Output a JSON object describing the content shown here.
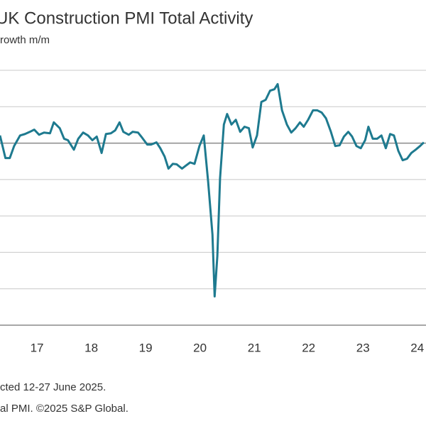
{
  "chart_data": {
    "type": "line",
    "title": "UK Construction PMI Total Activity",
    "subtitle": "rowth m/m",
    "notes": [
      "cted 12-27 June 2025.",
      "al PMI. ©2025 S&P Global."
    ],
    "x": [
      2016.32,
      2016.42,
      2016.5,
      2016.58,
      2016.69,
      2016.78,
      2016.87,
      2016.95,
      2017.04,
      2017.13,
      2017.24,
      2017.31,
      2017.42,
      2017.5,
      2017.57,
      2017.68,
      2017.76,
      2017.85,
      2017.94,
      2018.02,
      2018.1,
      2018.19,
      2018.27,
      2018.36,
      2018.44,
      2018.52,
      2018.59,
      2018.69,
      2018.76,
      2018.86,
      2018.93,
      2019.03,
      2019.1,
      2019.2,
      2019.27,
      2019.35,
      2019.42,
      2019.5,
      2019.57,
      2019.67,
      2019.74,
      2019.82,
      2019.9,
      2019.99,
      2020.07,
      2020.15,
      2020.23,
      2020.27,
      2020.32,
      2020.37,
      2020.44,
      2020.5,
      2020.58,
      2020.66,
      2020.74,
      2020.82,
      2020.9,
      2020.97,
      2021.05,
      2021.13,
      2021.21,
      2021.29,
      2021.37,
      2021.43,
      2021.51,
      2021.6,
      2021.68,
      2021.76,
      2021.84,
      2021.91,
      2021.99,
      2022.08,
      2022.16,
      2022.24,
      2022.32,
      2022.41,
      2022.49,
      2022.57,
      2022.65,
      2022.73,
      2022.8,
      2022.88,
      2022.96,
      2023.04,
      2023.1,
      2023.18,
      2023.26,
      2023.34,
      2023.42,
      2023.5,
      2023.57,
      2023.65,
      2023.73,
      2023.81,
      2023.89,
      2023.97,
      2024.05,
      2024.12
    ],
    "series": [
      {
        "name": "Total Activity",
        "color": "#1e7a8f",
        "values": [
          52.1,
          45.9,
          45.9,
          49.2,
          52.1,
          52.5,
          53.1,
          53.7,
          52.3,
          52.9,
          52.7,
          55.7,
          54.1,
          51.2,
          50.8,
          48.2,
          51.2,
          52.9,
          52.1,
          50.8,
          51.8,
          47.3,
          52.5,
          52.7,
          53.5,
          55.7,
          53.1,
          52.3,
          53.1,
          52.9,
          51.6,
          49.6,
          49.6,
          50.2,
          48.6,
          46.3,
          43.0,
          44.3,
          44.2,
          43.0,
          43.8,
          44.7,
          44.3,
          49.2,
          52.1,
          39.5,
          24.9,
          7.9,
          19.0,
          40.4,
          55.1,
          58.0,
          55.1,
          56.4,
          53.1,
          54.5,
          54.1,
          48.8,
          52.1,
          61.3,
          61.9,
          64.4,
          64.8,
          66.2,
          59.0,
          55.1,
          52.9,
          54.1,
          55.7,
          54.5,
          56.4,
          59.0,
          59.0,
          58.4,
          56.8,
          53.1,
          49.2,
          49.4,
          51.8,
          53.1,
          51.8,
          49.2,
          48.6,
          50.8,
          54.5,
          51.2,
          51.2,
          52.1,
          48.6,
          52.5,
          52.1,
          47.9,
          45.3,
          45.7,
          47.3,
          48.2,
          49.2,
          50.2
        ]
      }
    ],
    "xlim": [
      2016.32,
      2024.16
    ],
    "xticks": [
      {
        "value": 2017,
        "label": "17"
      },
      {
        "value": 2018,
        "label": "18"
      },
      {
        "value": 2019,
        "label": "19"
      },
      {
        "value": 2020,
        "label": "20"
      },
      {
        "value": 2021,
        "label": "21"
      },
      {
        "value": 2022,
        "label": "22"
      },
      {
        "value": 2023,
        "label": "23"
      },
      {
        "value": 2024,
        "label": "24"
      }
    ],
    "ylim": [
      0,
      70
    ],
    "yticks": [
      0,
      10,
      20,
      30,
      40,
      50,
      60,
      70
    ],
    "baseline": 50,
    "grid": true
  }
}
